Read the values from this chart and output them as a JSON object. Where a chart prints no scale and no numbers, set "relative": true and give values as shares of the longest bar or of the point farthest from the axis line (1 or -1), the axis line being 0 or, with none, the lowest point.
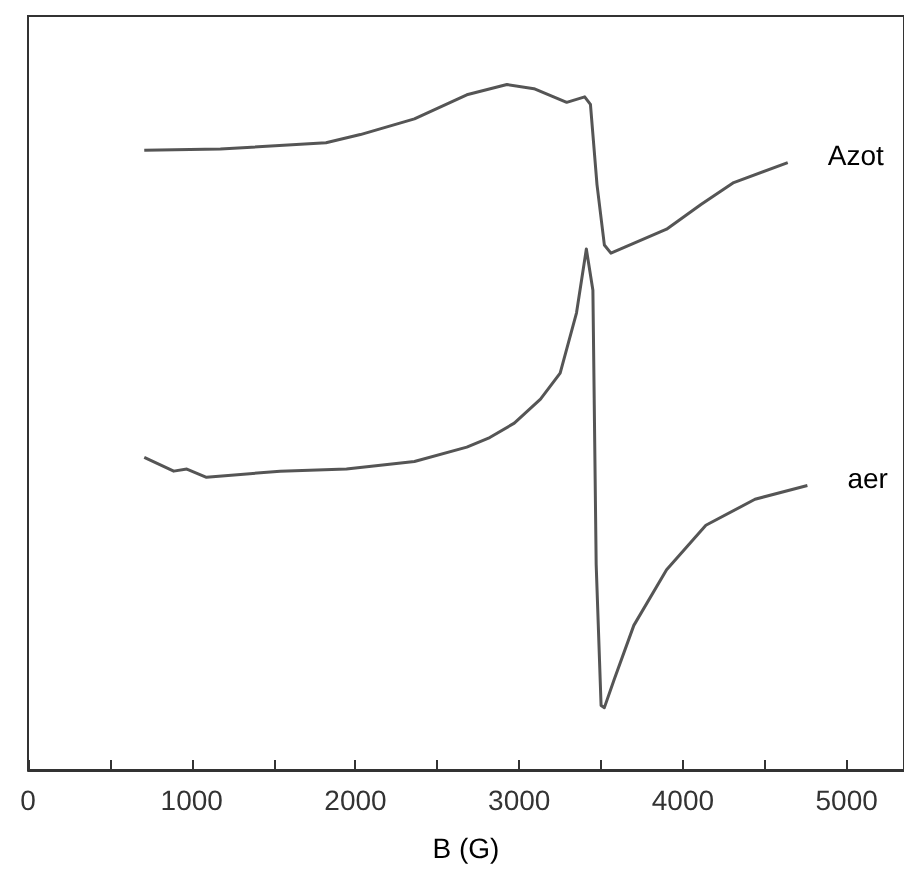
{
  "chart_data": {
    "type": "line",
    "xlabel": "B (G)",
    "relative": true,
    "marker": "none",
    "line_style": "solid",
    "grid": false,
    "legend": false,
    "xlim": [
      0,
      5350
    ],
    "xticks": [
      0,
      {
        "value": 500,
        "label": null
      },
      1000,
      {
        "value": 1500,
        "label": null
      },
      2000,
      {
        "value": 2500,
        "label": null
      },
      3000,
      {
        "value": 3500,
        "label": null
      },
      4000,
      {
        "value": 4500,
        "label": null
      },
      5000
    ],
    "series": [
      {
        "name": "Azot",
        "color": "#555555",
        "x": [
          710,
          1175,
          1820,
          2030,
          2360,
          2680,
          2925,
          3090,
          3290,
          3400,
          3435,
          3475,
          3520,
          3560,
          3900,
          4110,
          4310,
          4640
        ],
        "values": [
          0.904,
          0.906,
          0.915,
          0.927,
          0.95,
          0.985,
          1.0,
          0.994,
          0.974,
          0.982,
          0.971,
          0.854,
          0.766,
          0.754,
          0.789,
          0.825,
          0.857,
          0.886
        ]
      },
      {
        "name": "aer",
        "color": "#555555",
        "x": [
          710,
          890,
          970,
          1090,
          1540,
          1945,
          2360,
          2680,
          2820,
          2970,
          3130,
          3250,
          3350,
          3410,
          3450,
          3470,
          3500,
          3520,
          3580,
          3700,
          3900,
          4140,
          4440,
          4760
        ],
        "values": [
          0.456,
          0.436,
          0.439,
          0.427,
          0.436,
          0.439,
          0.45,
          0.471,
          0.485,
          0.506,
          0.541,
          0.579,
          0.667,
          0.76,
          0.7,
          0.3,
          0.094,
          0.091,
          0.132,
          0.211,
          0.292,
          0.357,
          0.395,
          0.415
        ]
      }
    ]
  }
}
